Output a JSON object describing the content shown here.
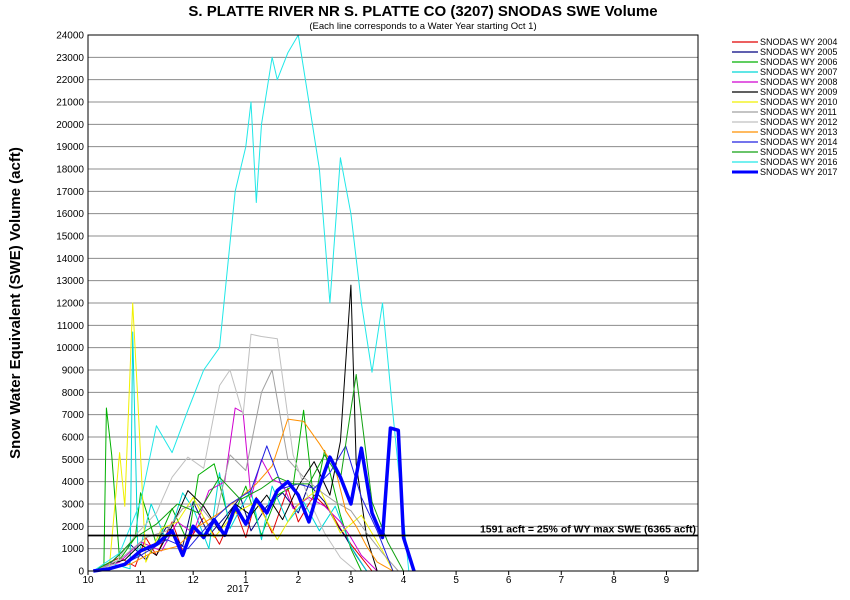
{
  "chart_data": {
    "type": "line",
    "title": "S. PLATTE RIVER NR S. PLATTE CO (3207) SNODAS SWE Volume",
    "subtitle": "(Each line corresponds to a Water Year starting Oct 1)",
    "ylabel": "Snow Water Equivalent (SWE) Volume (acft)",
    "xlabel": "",
    "ylim": [
      0,
      24000
    ],
    "yticks": [
      0,
      1000,
      2000,
      3000,
      4000,
      5000,
      6000,
      7000,
      8000,
      9000,
      10000,
      11000,
      12000,
      13000,
      14000,
      15000,
      16000,
      17000,
      18000,
      19000,
      20000,
      21000,
      22000,
      23000,
      24000
    ],
    "xlim": [
      "10/1",
      "9/30"
    ],
    "xticks": [
      "10",
      "11",
      "12",
      "1",
      "2",
      "3",
      "4",
      "5",
      "6",
      "7",
      "8",
      "9"
    ],
    "x_year_label": "2017",
    "grid": "horizontal",
    "legend_position": "right",
    "reference_line": {
      "value": 1591,
      "label": "1591 acft = 25% of WY max SWE (6365 acft)",
      "color": "#000000"
    },
    "series": [
      {
        "name": "SNODAS WY 2004",
        "color": "#e00000",
        "x": [
          0.1,
          0.6,
          0.9,
          1.1,
          1.3,
          1.6,
          1.8,
          2.2,
          2.5,
          2.8,
          3.0,
          3.2,
          3.5,
          3.8,
          4.0,
          4.3,
          4.6,
          4.8,
          5.0,
          5.2,
          5.4
        ],
        "y": [
          0,
          600,
          200,
          1500,
          700,
          2200,
          900,
          2400,
          1200,
          2800,
          1500,
          3300,
          1700,
          3700,
          2200,
          3400,
          2700,
          1900,
          1200,
          600,
          0
        ]
      },
      {
        "name": "SNODAS WY 2005",
        "color": "#000080",
        "x": [
          0.1,
          0.4,
          0.8,
          1.1,
          1.5,
          1.8,
          2.0,
          2.3,
          2.6,
          2.9,
          3.1,
          3.4,
          3.7,
          4.0,
          4.2,
          4.5,
          4.7,
          4.9,
          5.1,
          5.3
        ],
        "y": [
          0,
          300,
          1200,
          500,
          2000,
          1100,
          3100,
          1600,
          2400,
          3300,
          1800,
          2900,
          3500,
          2600,
          3900,
          3100,
          2200,
          1500,
          700,
          0
        ]
      },
      {
        "name": "SNODAS WY 2006",
        "color": "#00b000",
        "x": [
          0.1,
          0.3,
          0.35,
          0.45,
          0.6,
          0.9,
          1.0,
          1.3,
          1.6,
          1.9,
          2.1,
          2.4,
          2.7,
          3.0,
          3.3,
          3.6,
          3.9,
          4.1,
          4.3,
          4.5,
          4.8,
          5.0,
          5.2
        ],
        "y": [
          0,
          0,
          7300,
          5200,
          500,
          1500,
          3500,
          1200,
          2800,
          1300,
          4300,
          4800,
          2100,
          3800,
          1600,
          3400,
          3800,
          7200,
          3000,
          5400,
          2500,
          1000,
          0
        ]
      },
      {
        "name": "SNODAS WY 2007",
        "color": "#00d8d8",
        "x": [
          0.1,
          0.5,
          0.8,
          0.85,
          0.95,
          1.2,
          1.5,
          1.8,
          2.0,
          2.3,
          2.5,
          2.7,
          2.9,
          3.1,
          3.3,
          3.5,
          3.8,
          4.1,
          4.4,
          4.7,
          5.0,
          5.3
        ],
        "y": [
          0,
          300,
          100,
          10700,
          600,
          3000,
          1300,
          3500,
          2800,
          1000,
          4400,
          1900,
          2800,
          3600,
          1400,
          3800,
          2200,
          3100,
          1800,
          2900,
          1100,
          0
        ]
      },
      {
        "name": "SNODAS WY 2008",
        "color": "#d000d0",
        "x": [
          0.1,
          0.6,
          1.0,
          1.4,
          1.7,
          2.0,
          2.3,
          2.6,
          2.8,
          2.95,
          3.1,
          3.3,
          3.5,
          3.7,
          3.9,
          4.2,
          4.5,
          4.8,
          5.0,
          5.2,
          5.5
        ],
        "y": [
          0,
          400,
          1300,
          900,
          2200,
          1700,
          3600,
          4000,
          7300,
          7100,
          3300,
          5000,
          4100,
          3900,
          2800,
          3300,
          2900,
          2200,
          1500,
          700,
          0
        ]
      },
      {
        "name": "SNODAS WY 2009",
        "color": "#000000",
        "x": [
          0.1,
          0.4,
          0.7,
          1.0,
          1.3,
          1.6,
          1.9,
          2.2,
          2.5,
          2.8,
          3.1,
          3.4,
          3.7,
          4.0,
          4.3,
          4.6,
          4.8,
          5.0,
          5.1,
          5.3,
          5.5
        ],
        "y": [
          0,
          300,
          500,
          1200,
          700,
          2000,
          3600,
          2900,
          1800,
          3000,
          2500,
          3400,
          2300,
          3800,
          4900,
          3400,
          5800,
          12800,
          4800,
          1500,
          0
        ]
      },
      {
        "name": "SNODAS WY 2010",
        "color": "#f0f000",
        "x": [
          0.1,
          0.4,
          0.6,
          0.7,
          0.85,
          0.95,
          1.1,
          1.4,
          1.7,
          2.0,
          2.4,
          2.8,
          3.2,
          3.6,
          4.0,
          4.4,
          4.8,
          5.2,
          5.6,
          5.8
        ],
        "y": [
          0,
          0,
          5300,
          2900,
          12000,
          7500,
          400,
          1900,
          2200,
          3300,
          1500,
          2600,
          3100,
          1400,
          3000,
          3700,
          1700,
          2500,
          900,
          0
        ]
      },
      {
        "name": "SNODAS WY 2011",
        "color": "#a0a0a0",
        "x": [
          0.1,
          0.6,
          1.1,
          1.5,
          1.8,
          2.1,
          2.4,
          2.7,
          3.0,
          3.3,
          3.5,
          3.8,
          4.1,
          4.4,
          4.7,
          5.0,
          5.3,
          5.6,
          5.9
        ],
        "y": [
          0,
          500,
          1500,
          1800,
          2800,
          3000,
          2100,
          5200,
          4500,
          8000,
          9000,
          5000,
          4200,
          3600,
          3100,
          2700,
          1700,
          800,
          0
        ]
      },
      {
        "name": "SNODAS WY 2012",
        "color": "#c0c0c0",
        "x": [
          0.1,
          0.5,
          0.9,
          1.3,
          1.6,
          1.9,
          2.2,
          2.5,
          2.7,
          2.95,
          3.1,
          3.3,
          3.6,
          3.9,
          4.2,
          4.5,
          4.8,
          5.1
        ],
        "y": [
          0,
          300,
          1600,
          2600,
          4200,
          5100,
          4600,
          8300,
          9000,
          7000,
          10600,
          10500,
          10400,
          5200,
          3200,
          1700,
          600,
          0
        ]
      },
      {
        "name": "SNODAS WY 2013",
        "color": "#ff9000",
        "x": [
          0.1,
          0.8,
          1.2,
          1.7,
          2.1,
          2.5,
          2.9,
          3.2,
          3.5,
          3.8,
          4.1,
          4.4,
          4.7,
          4.9,
          5.1,
          5.3,
          5.5,
          5.8
        ],
        "y": [
          0,
          300,
          800,
          1100,
          2000,
          2600,
          3300,
          3900,
          4700,
          6800,
          6700,
          5700,
          4600,
          2700,
          2000,
          1100,
          400,
          0
        ]
      },
      {
        "name": "SNODAS WY 2014",
        "color": "#2020e0",
        "x": [
          0.1,
          0.6,
          1.0,
          1.5,
          1.9,
          2.3,
          2.7,
          3.1,
          3.4,
          3.7,
          4.0,
          4.3,
          4.6,
          4.9,
          5.2,
          5.5,
          5.8
        ],
        "y": [
          0,
          200,
          700,
          1400,
          1000,
          2100,
          3000,
          3600,
          5600,
          3700,
          3900,
          3700,
          4400,
          5600,
          3300,
          1800,
          0
        ]
      },
      {
        "name": "SNODAS WY 2015",
        "color": "#10a010",
        "x": [
          0.1,
          0.5,
          0.9,
          1.3,
          1.7,
          2.1,
          2.5,
          2.9,
          3.3,
          3.6,
          3.9,
          4.2,
          4.5,
          4.8,
          5.1,
          5.4,
          5.7,
          6.0
        ],
        "y": [
          0,
          500,
          1500,
          2100,
          3000,
          2600,
          4200,
          3200,
          3700,
          4200,
          3900,
          3900,
          5200,
          4100,
          8800,
          3100,
          1300,
          0
        ]
      },
      {
        "name": "SNODAS WY 2016",
        "color": "#20e8e8",
        "x": [
          0.1,
          0.6,
          1.0,
          1.3,
          1.6,
          1.9,
          2.2,
          2.5,
          2.8,
          3.0,
          3.1,
          3.2,
          3.3,
          3.5,
          3.6,
          3.8,
          4.0,
          4.2,
          4.4,
          4.6,
          4.8,
          5.0,
          5.2,
          5.4,
          5.6,
          5.8,
          6.1
        ],
        "y": [
          0,
          800,
          3100,
          6500,
          5300,
          7200,
          9000,
          10000,
          17000,
          19000,
          21000,
          16500,
          20000,
          23000,
          22000,
          23200,
          24000,
          21000,
          18000,
          12000,
          18500,
          16000,
          12000,
          8900,
          12000,
          7000,
          0
        ]
      },
      {
        "name": "SNODAS WY 2017",
        "color": "#0000ff",
        "bold": true,
        "x": [
          0.1,
          0.4,
          0.7,
          1.0,
          1.3,
          1.6,
          1.8,
          2.0,
          2.2,
          2.4,
          2.6,
          2.8,
          3.0,
          3.2,
          3.4,
          3.6,
          3.8,
          4.0,
          4.2,
          4.4,
          4.6,
          4.8,
          5.0,
          5.2,
          5.4,
          5.6,
          5.75,
          5.9,
          6.0,
          6.2
        ],
        "y": [
          0,
          100,
          300,
          900,
          1200,
          1800,
          700,
          2000,
          1500,
          2300,
          1600,
          2900,
          2100,
          3200,
          2600,
          3600,
          4000,
          3400,
          2200,
          3800,
          5100,
          4200,
          3000,
          5500,
          2600,
          1500,
          6400,
          6300,
          1500,
          0
        ]
      }
    ]
  }
}
